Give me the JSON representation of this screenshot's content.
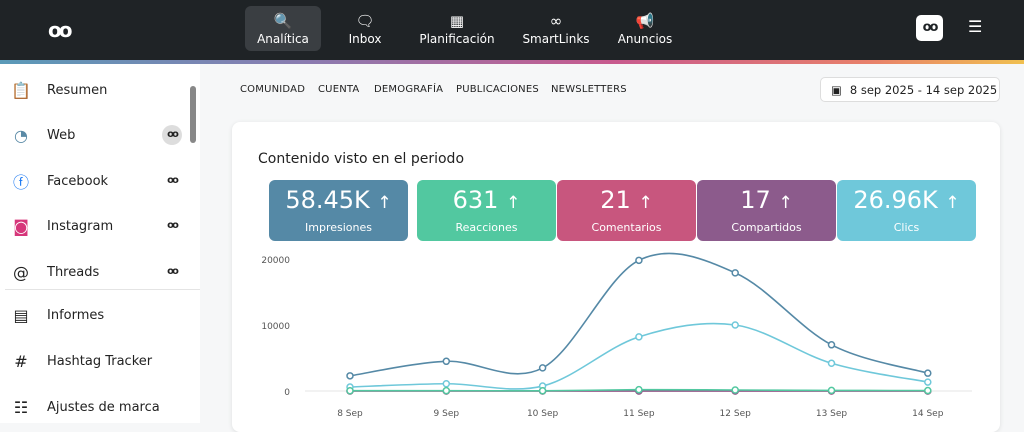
{
  "header": {
    "logo": "oo",
    "nav": [
      {
        "label": "Analítica",
        "icon": "analytics-search-icon",
        "active": true
      },
      {
        "label": "Inbox",
        "icon": "chat-icon"
      },
      {
        "label": "Planificación",
        "icon": "calendar-icon"
      },
      {
        "label": "SmartLinks",
        "icon": "link-icon"
      },
      {
        "label": "Anuncios",
        "icon": "megaphone-icon"
      }
    ],
    "avatar": "oo",
    "menu_icon": "hamburger-icon"
  },
  "sidebar": {
    "items": [
      {
        "label": "Resumen",
        "icon": "clipboard-icon"
      },
      {
        "label": "Web",
        "icon": "rss-icon",
        "badge": "oo"
      },
      {
        "label": "Facebook",
        "icon": "facebook-icon",
        "badge": "oo"
      },
      {
        "label": "Instagram",
        "icon": "instagram-icon",
        "badge": "oo"
      },
      {
        "label": "Threads",
        "icon": "threads-icon",
        "badge": "oo"
      },
      {
        "label": "Informes",
        "icon": "report-icon"
      },
      {
        "label": "Hashtag Tracker",
        "icon": "hashtag-icon"
      },
      {
        "label": "Ajustes de marca",
        "icon": "sliders-icon"
      }
    ]
  },
  "tabs": [
    "COMUNIDAD",
    "CUENTA",
    "DEMOGRAFÍA",
    "PUBLICACIONES",
    "NEWSLETTERS"
  ],
  "date_range": "8 sep 2025 - 14 sep 2025",
  "card": {
    "title": "Contenido visto en el periodo",
    "kpis": [
      {
        "value": "58.45K",
        "label": "Impresiones",
        "color": "#5589a6"
      },
      {
        "value": "631",
        "label": "Reacciones",
        "color": "#52c8a0"
      },
      {
        "value": "21",
        "label": "Comentarios",
        "color": "#c8567e"
      },
      {
        "value": "17",
        "label": "Compartidos",
        "color": "#8c5b8c"
      },
      {
        "value": "26.96K",
        "label": "Clics",
        "color": "#6fc8da"
      }
    ],
    "arrow": "↑"
  },
  "chart_data": {
    "type": "line",
    "categories": [
      "8 Sep",
      "9 Sep",
      "10 Sep",
      "11 Sep",
      "12 Sep",
      "13 Sep",
      "14 Sep"
    ],
    "yticks": [
      "0",
      "10000",
      "20000"
    ],
    "ylim": [
      0,
      20000
    ],
    "grid": "y=0 baseline only",
    "legend": "none",
    "series": [
      {
        "color": "#5589a6",
        "values": [
          2300,
          4500,
          3500,
          19800,
          17900,
          7000,
          2700
        ]
      },
      {
        "color": "#6fc8da",
        "values": [
          600,
          1100,
          750,
          8200,
          10000,
          4200,
          1350
        ]
      },
      {
        "color": "#c8567e",
        "values": [
          5,
          3,
          2,
          5,
          4,
          1,
          1
        ]
      },
      {
        "color": "#8c5b8c",
        "values": [
          2,
          3,
          1,
          4,
          4,
          2,
          1
        ]
      },
      {
        "color": "#52c8a0",
        "values": [
          40,
          50,
          30,
          200,
          150,
          90,
          70
        ]
      }
    ]
  }
}
